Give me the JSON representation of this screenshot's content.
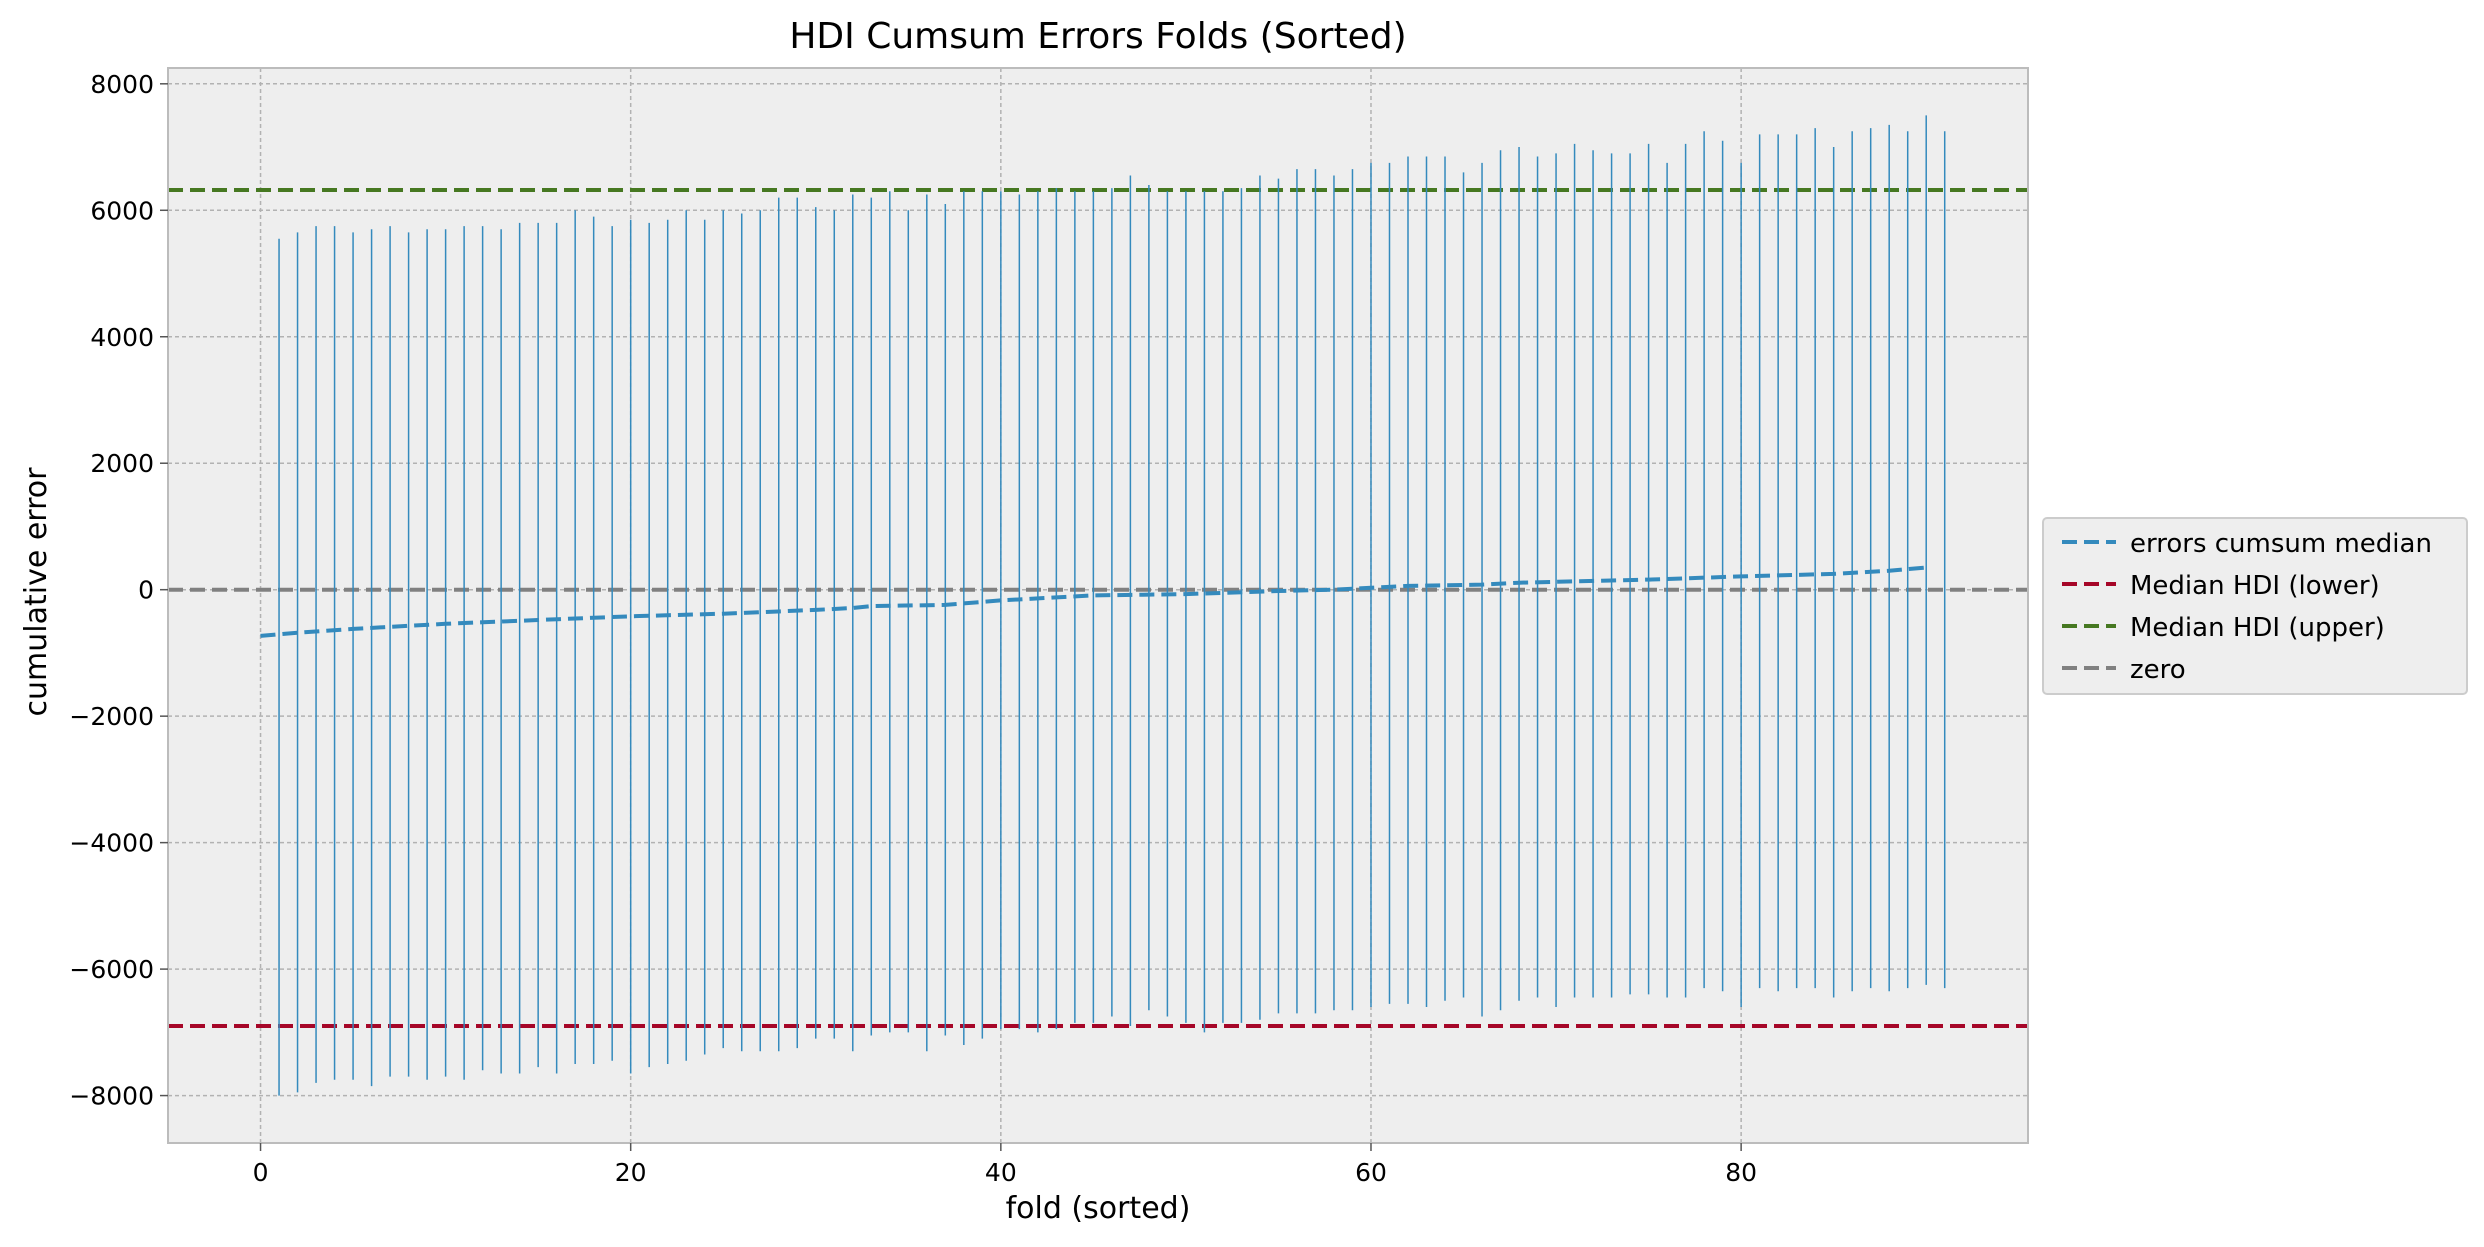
{
  "chart_data": {
    "type": "line",
    "title": "HDI Cumsum Errors Folds (Sorted)",
    "xlabel": "fold (sorted)",
    "ylabel": "cumulative error",
    "xlim": [
      -5,
      95.5
    ],
    "ylim": [
      -8750,
      8250
    ],
    "x_ticks": [
      0,
      20,
      40,
      60,
      80
    ],
    "y_ticks": [
      -8000,
      -6000,
      -4000,
      -2000,
      0,
      2000,
      4000,
      6000,
      8000
    ],
    "grid": true,
    "legend_position": "center-right-outside",
    "colors": {
      "errorbar": "#348ABD",
      "median": "#348ABD",
      "hdi_lower": "#A60628",
      "hdi_upper": "#467821",
      "zero": "#808080",
      "axes_bg": "#EEEEEE",
      "grid": "#B2B2B2"
    },
    "legend": [
      {
        "label": "errors cumsum median",
        "color": "#348ABD"
      },
      {
        "label": "Median HDI (lower)",
        "color": "#A60628"
      },
      {
        "label": "Median HDI (upper)",
        "color": "#467821"
      },
      {
        "label": "zero",
        "color": "#808080"
      }
    ],
    "hlines": {
      "hdi_lower": -6900,
      "hdi_upper": 6320,
      "zero": 0
    },
    "median_series": {
      "name": "errors cumsum median",
      "x": [
        0,
        2,
        5,
        10,
        15,
        20,
        25,
        30,
        32,
        33,
        37,
        40,
        45,
        50,
        55,
        58,
        60,
        62,
        66,
        68,
        75,
        80,
        85,
        88,
        90
      ],
      "y": [
        -730,
        -680,
        -620,
        -540,
        -480,
        -420,
        -380,
        -320,
        -290,
        -260,
        -240,
        -170,
        -90,
        -70,
        -20,
        0,
        30,
        60,
        80,
        110,
        160,
        210,
        250,
        300,
        350
      ]
    },
    "errorbars": {
      "x": [
        1,
        2,
        3,
        4,
        5,
        6,
        7,
        8,
        9,
        10,
        11,
        12,
        13,
        14,
        15,
        16,
        17,
        18,
        19,
        20,
        21,
        22,
        23,
        24,
        25,
        26,
        27,
        28,
        29,
        30,
        31,
        32,
        33,
        34,
        35,
        36,
        37,
        38,
        39,
        40,
        41,
        42,
        43,
        44,
        45,
        46,
        47,
        48,
        49,
        50,
        51,
        52,
        53,
        54,
        55,
        56,
        57,
        58,
        59,
        60,
        61,
        62,
        63,
        64,
        65,
        66,
        67,
        68,
        69,
        70,
        71,
        72,
        73,
        74,
        75,
        76,
        77,
        78,
        79,
        80,
        81,
        82,
        83,
        84,
        85,
        86,
        87,
        88,
        89,
        90,
        91
      ],
      "upper": [
        5550,
        5650,
        5750,
        5750,
        5650,
        5700,
        5750,
        5650,
        5700,
        5700,
        5750,
        5750,
        5700,
        5800,
        5800,
        5800,
        6000,
        5900,
        5750,
        5850,
        5800,
        5850,
        6000,
        5850,
        6000,
        5950,
        6000,
        6200,
        6200,
        6050,
        6000,
        6250,
        6200,
        6300,
        6000,
        6250,
        6100,
        6300,
        6300,
        6300,
        6250,
        6300,
        6350,
        6300,
        6300,
        6350,
        6550,
        6400,
        6300,
        6300,
        6300,
        6300,
        6350,
        6550,
        6500,
        6650,
        6650,
        6550,
        6650,
        6750,
        6750,
        6850,
        6850,
        6850,
        6600,
        6750,
        6950,
        7000,
        6850,
        6900,
        7050,
        6950,
        6900,
        6900,
        7050,
        6750,
        7050,
        7250,
        7100,
        6750,
        7200,
        7200,
        7200,
        7300,
        7000,
        7250,
        7300,
        7350,
        7250,
        7500,
        7250
      ],
      "lower": [
        -8000,
        -7950,
        -7800,
        -7750,
        -7750,
        -7850,
        -7700,
        -7700,
        -7750,
        -7700,
        -7750,
        -7600,
        -7650,
        -7650,
        -7550,
        -7650,
        -7500,
        -7500,
        -7450,
        -7650,
        -7550,
        -7500,
        -7450,
        -7350,
        -7250,
        -7300,
        -7300,
        -7300,
        -7250,
        -7100,
        -7100,
        -7300,
        -7050,
        -7000,
        -7000,
        -7300,
        -7050,
        -7200,
        -7100,
        -6950,
        -6950,
        -7000,
        -6950,
        -6850,
        -6850,
        -6750,
        -6900,
        -6650,
        -6750,
        -6850,
        -7000,
        -6850,
        -6850,
        -6800,
        -6700,
        -6700,
        -6700,
        -6650,
        -6650,
        -6600,
        -6550,
        -6550,
        -6600,
        -6500,
        -6450,
        -6750,
        -6650,
        -6500,
        -6450,
        -6600,
        -6450,
        -6450,
        -6450,
        -6400,
        -6400,
        -6450,
        -6450,
        -6300,
        -6350,
        -6600,
        -6300,
        -6350,
        -6300,
        -6300,
        -6450,
        -6350,
        -6300,
        -6350,
        -6300,
        -6250,
        -6300
      ]
    }
  }
}
